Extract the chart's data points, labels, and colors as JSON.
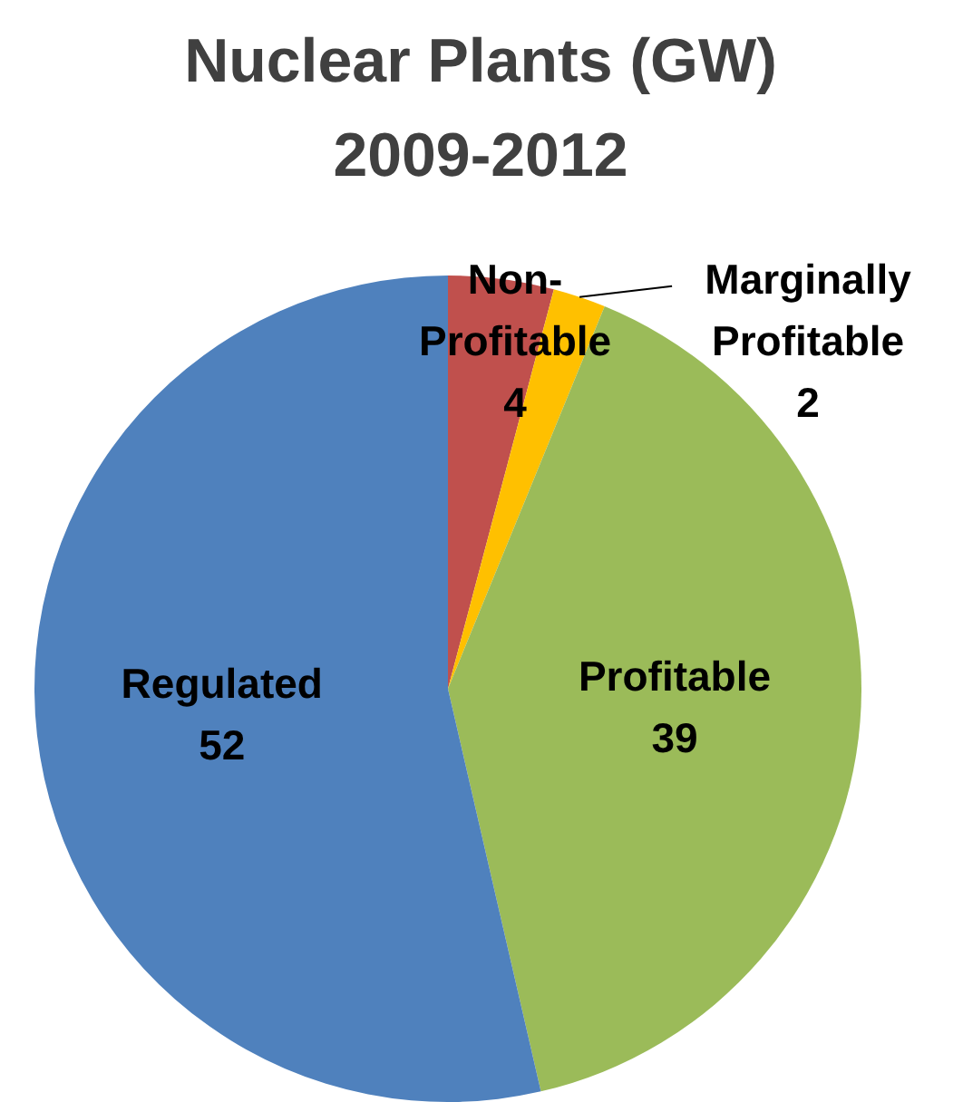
{
  "chart_data": {
    "type": "pie",
    "title": "Nuclear Plants (GW)\n2009-2012",
    "categories": [
      "Non-Profitable",
      "Marginally Profitable",
      "Profitable",
      "Regulated"
    ],
    "values": [
      4,
      2,
      39,
      52
    ],
    "colors": [
      "#c0504d",
      "#ffc000",
      "#9bbb59",
      "#4f81bd"
    ],
    "data_labels": true
  }
}
